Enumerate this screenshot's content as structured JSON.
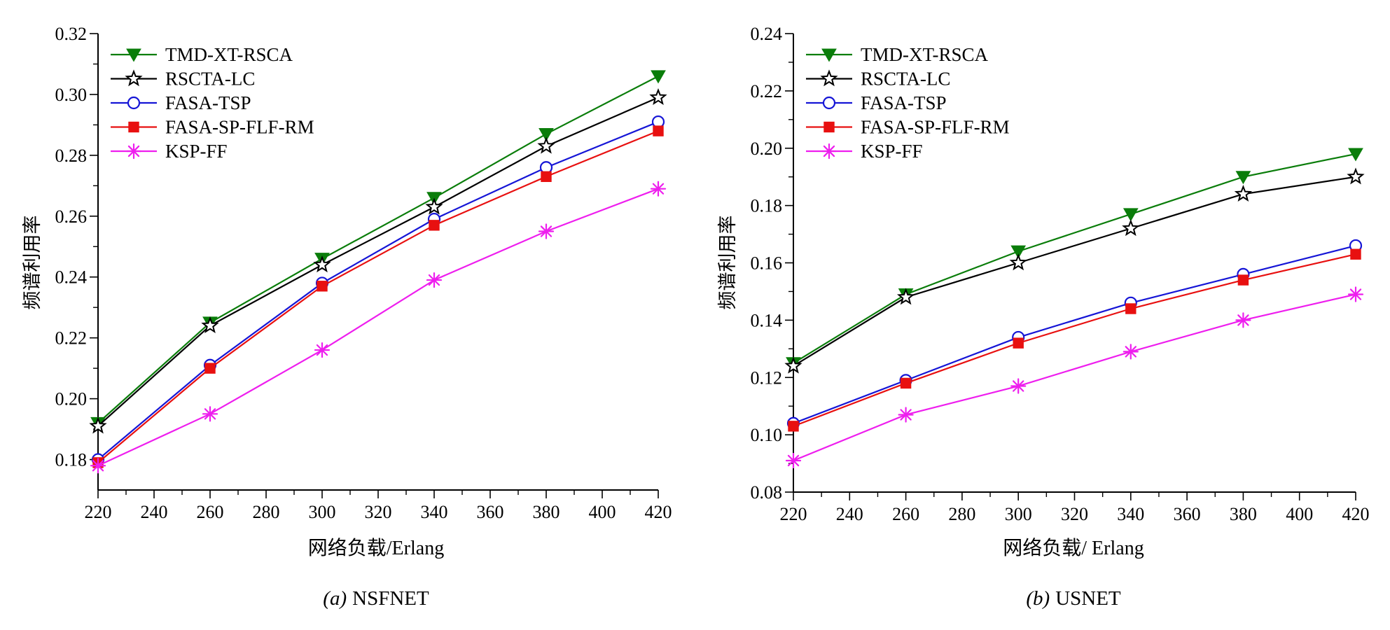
{
  "chart_data": [
    {
      "type": "line",
      "title": "",
      "caption_label": "(a)",
      "caption_text": "NSFNET",
      "xlabel": "网络负载/Erlang",
      "ylabel": "频谱利用率",
      "x": [
        220,
        260,
        300,
        340,
        380,
        420
      ],
      "xlim": [
        220,
        420
      ],
      "ylim": [
        0.17,
        0.32
      ],
      "xticks": [
        "220",
        "240",
        "260",
        "280",
        "300",
        "320",
        "340",
        "360",
        "380",
        "400",
        "420"
      ],
      "yticks": [
        "0.18",
        "0.20",
        "0.22",
        "0.24",
        "0.26",
        "0.28",
        "0.30",
        "0.32"
      ],
      "legend_position": "top-left",
      "grid": false,
      "series": [
        {
          "name": "TMD-XT-RSCA",
          "color": "#0a7d0a",
          "marker": "triangle-down-filled",
          "values": [
            0.192,
            0.225,
            0.246,
            0.266,
            0.287,
            0.306
          ]
        },
        {
          "name": "RSCTA-LC",
          "color": "#000000",
          "marker": "star-open",
          "values": [
            0.191,
            0.224,
            0.244,
            0.263,
            0.283,
            0.299
          ]
        },
        {
          "name": "FASA-TSP",
          "color": "#1515d6",
          "marker": "circle-open",
          "values": [
            0.18,
            0.211,
            0.238,
            0.259,
            0.276,
            0.291
          ]
        },
        {
          "name": "FASA-SP-FLF-RM",
          "color": "#e81010",
          "marker": "square-filled",
          "values": [
            0.179,
            0.21,
            0.237,
            0.257,
            0.273,
            0.288
          ]
        },
        {
          "name": "KSP-FF",
          "color": "#ee1eee",
          "marker": "asterisk",
          "values": [
            0.178,
            0.195,
            0.216,
            0.239,
            0.255,
            0.269
          ]
        }
      ]
    },
    {
      "type": "line",
      "title": "",
      "caption_label": "(b)",
      "caption_text": "USNET",
      "xlabel": "网络负载/ Erlang",
      "ylabel": "频谱利用率",
      "x": [
        220,
        260,
        300,
        340,
        380,
        420
      ],
      "xlim": [
        220,
        420
      ],
      "ylim": [
        0.08,
        0.24
      ],
      "xticks": [
        "220",
        "240",
        "260",
        "280",
        "300",
        "320",
        "340",
        "360",
        "380",
        "400",
        "420"
      ],
      "yticks": [
        "0.08",
        "0.10",
        "0.12",
        "0.14",
        "0.16",
        "0.18",
        "0.20",
        "0.22",
        "0.24"
      ],
      "legend_position": "top-left",
      "grid": false,
      "series": [
        {
          "name": "TMD-XT-RSCA",
          "color": "#0a7d0a",
          "marker": "triangle-down-filled",
          "values": [
            0.125,
            0.149,
            0.164,
            0.177,
            0.19,
            0.198
          ]
        },
        {
          "name": "RSCTA-LC",
          "color": "#000000",
          "marker": "star-open",
          "values": [
            0.124,
            0.148,
            0.16,
            0.172,
            0.184,
            0.19
          ]
        },
        {
          "name": "FASA-TSP",
          "color": "#1515d6",
          "marker": "circle-open",
          "values": [
            0.104,
            0.119,
            0.134,
            0.146,
            0.156,
            0.166
          ]
        },
        {
          "name": "FASA-SP-FLF-RM",
          "color": "#e81010",
          "marker": "square-filled",
          "values": [
            0.103,
            0.118,
            0.132,
            0.144,
            0.154,
            0.163
          ]
        },
        {
          "name": "KSP-FF",
          "color": "#ee1eee",
          "marker": "asterisk",
          "values": [
            0.091,
            0.107,
            0.117,
            0.129,
            0.14,
            0.149
          ]
        }
      ]
    }
  ]
}
